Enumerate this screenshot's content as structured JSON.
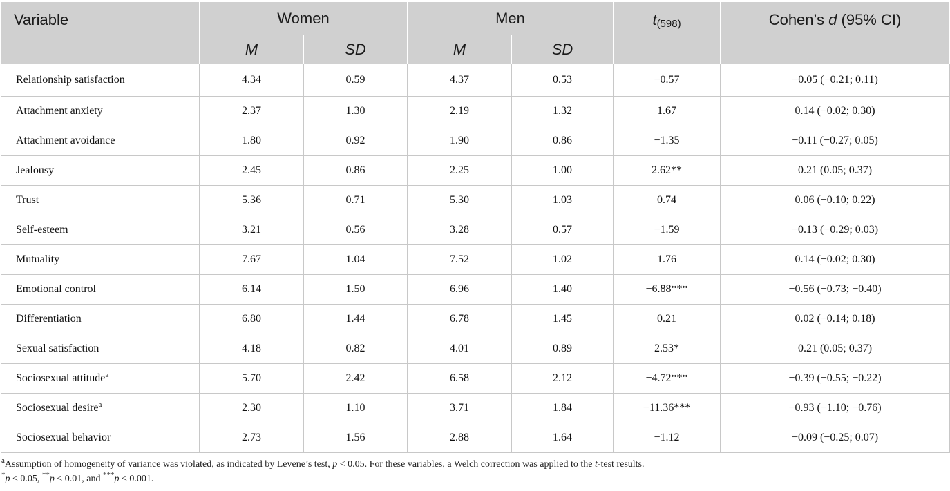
{
  "header": {
    "variable": "Variable",
    "women": "Women",
    "men": "Men",
    "t_label": "t",
    "t_df": "(598)",
    "d_prefix": "Cohen’s ",
    "d_symbol": "d",
    "d_suffix": " (95% CI)",
    "m": "M",
    "sd": "SD"
  },
  "rows": [
    {
      "variable": "Relationship satisfaction",
      "sup": "",
      "w_m": "4.34",
      "w_sd": "0.59",
      "m_m": "4.37",
      "m_sd": "0.53",
      "t": "−0.57",
      "d": "−0.05 (−0.21; 0.11)"
    },
    {
      "variable": "Attachment anxiety",
      "sup": "",
      "w_m": "2.37",
      "w_sd": "1.30",
      "m_m": "2.19",
      "m_sd": "1.32",
      "t": "1.67",
      "d": "0.14 (−0.02; 0.30)"
    },
    {
      "variable": "Attachment avoidance",
      "sup": "",
      "w_m": "1.80",
      "w_sd": "0.92",
      "m_m": "1.90",
      "m_sd": "0.86",
      "t": "−1.35",
      "d": "−0.11 (−0.27; 0.05)"
    },
    {
      "variable": "Jealousy",
      "sup": "",
      "w_m": "2.45",
      "w_sd": "0.86",
      "m_m": "2.25",
      "m_sd": "1.00",
      "t": "2.62**",
      "d": "0.21 (0.05; 0.37)"
    },
    {
      "variable": "Trust",
      "sup": "",
      "w_m": "5.36",
      "w_sd": "0.71",
      "m_m": "5.30",
      "m_sd": "1.03",
      "t": "0.74",
      "d": "0.06 (−0.10; 0.22)"
    },
    {
      "variable": "Self-esteem",
      "sup": "",
      "w_m": "3.21",
      "w_sd": "0.56",
      "m_m": "3.28",
      "m_sd": "0.57",
      "t": "−1.59",
      "d": "−0.13 (−0.29; 0.03)"
    },
    {
      "variable": "Mutuality",
      "sup": "",
      "w_m": "7.67",
      "w_sd": "1.04",
      "m_m": "7.52",
      "m_sd": "1.02",
      "t": "1.76",
      "d": "0.14 (−0.02; 0.30)"
    },
    {
      "variable": "Emotional control",
      "sup": "",
      "w_m": "6.14",
      "w_sd": "1.50",
      "m_m": "6.96",
      "m_sd": "1.40",
      "t": "−6.88***",
      "d": "−0.56 (−0.73; −0.40)"
    },
    {
      "variable": "Differentiation",
      "sup": "",
      "w_m": "6.80",
      "w_sd": "1.44",
      "m_m": "6.78",
      "m_sd": "1.45",
      "t": "0.21",
      "d": "0.02 (−0.14; 0.18)"
    },
    {
      "variable": "Sexual satisfaction",
      "sup": "",
      "w_m": "4.18",
      "w_sd": "0.82",
      "m_m": "4.01",
      "m_sd": "0.89",
      "t": "2.53*",
      "d": "0.21 (0.05; 0.37)"
    },
    {
      "variable": "Sociosexual attitude",
      "sup": "a",
      "w_m": "5.70",
      "w_sd": "2.42",
      "m_m": "6.58",
      "m_sd": "2.12",
      "t": "−4.72***",
      "d": "−0.39 (−0.55; −0.22)"
    },
    {
      "variable": "Sociosexual desire",
      "sup": "a",
      "w_m": "2.30",
      "w_sd": "1.10",
      "m_m": "3.71",
      "m_sd": "1.84",
      "t": "−11.36***",
      "d": "−0.93 (−1.10; −0.76)"
    },
    {
      "variable": "Sociosexual behavior",
      "sup": "",
      "w_m": "2.73",
      "w_sd": "1.56",
      "m_m": "2.88",
      "m_sd": "1.64",
      "t": "−1.12",
      "d": "−0.09 (−0.25; 0.07)"
    }
  ],
  "footnotes": {
    "a_mark": "a",
    "a_text_1": "Assumption of homogeneity of variance was violated, as indicated by Levene’s test, ",
    "a_p": "p",
    "a_text_2": " < 0.05. For these variables, a Welch correction was applied to the ",
    "a_t": "t",
    "a_text_3": "-test results.",
    "sig_1_mark": "*",
    "sig_1_p": "p",
    "sig_1_text": " < 0.05, ",
    "sig_2_mark": "**",
    "sig_2_p": "p",
    "sig_2_text": " < 0.01, and ",
    "sig_3_mark": "***",
    "sig_3_p": "p",
    "sig_3_text": " < 0.001."
  }
}
